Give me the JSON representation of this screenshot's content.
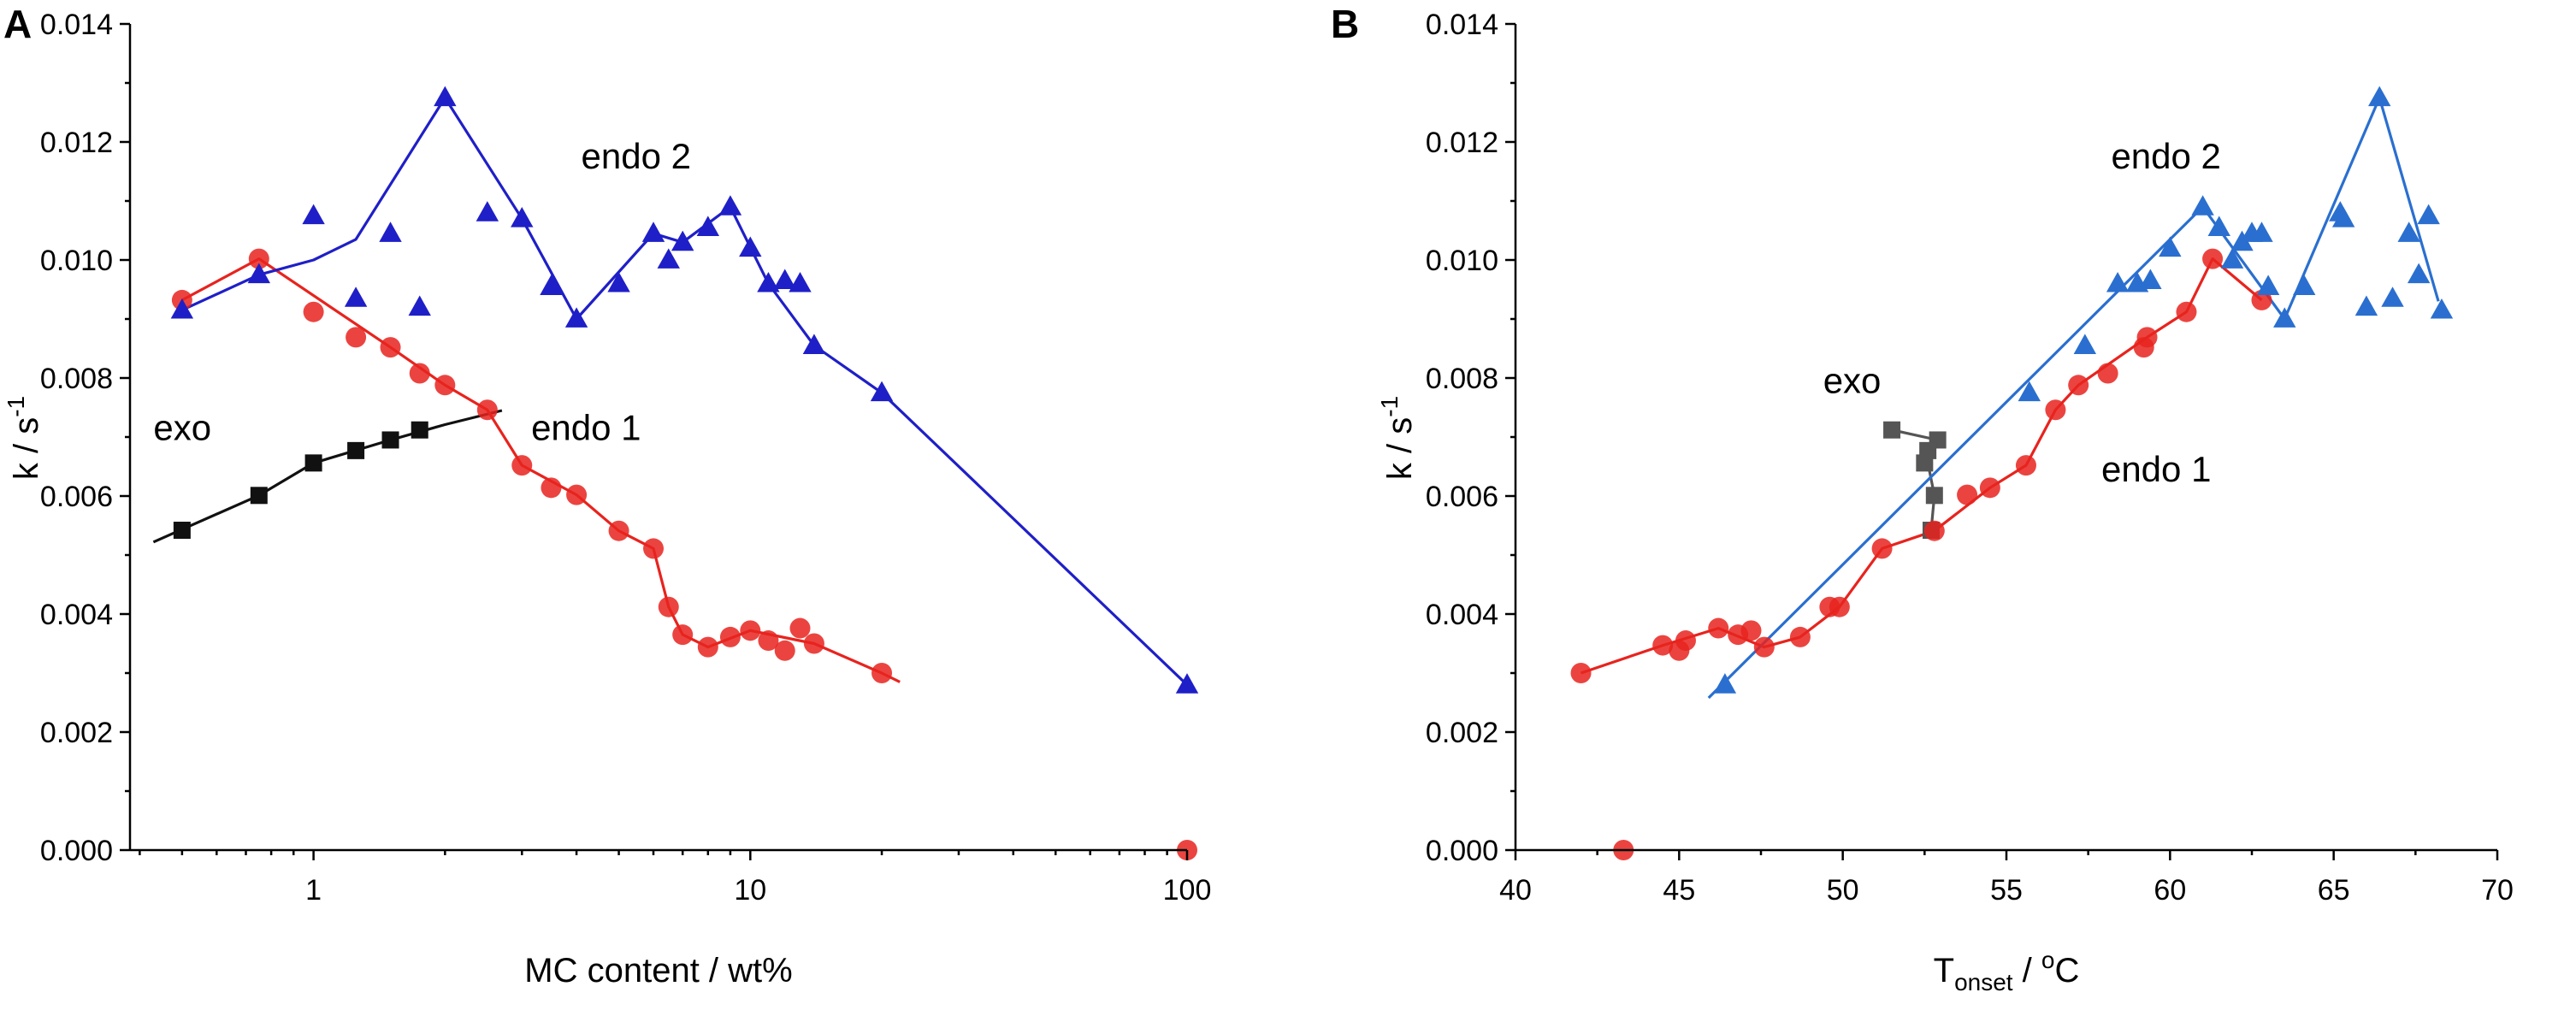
{
  "colors": {
    "exo": "#111111",
    "endo1": "#e8231e",
    "endo2": "#1f1fc8"
  },
  "chart_data": [
    {
      "panel": "A",
      "type": "scatter",
      "title": "",
      "xlabel": "MC content / wt%",
      "ylabel_main": "k / s",
      "ylabel_sup": "-1",
      "xscale": "log",
      "xlim": [
        0.38,
        100
      ],
      "ylim": [
        0,
        0.014
      ],
      "xticks": [
        1,
        10,
        100
      ],
      "xtick_labels": [
        "1",
        "10",
        "100"
      ],
      "yticks": [
        0,
        0.002,
        0.004,
        0.006,
        0.008,
        0.01,
        0.012,
        0.014
      ],
      "ytick_labels": [
        "0.000",
        "0.002",
        "0.004",
        "0.006",
        "0.008",
        "0.010",
        "0.012",
        "0.014"
      ],
      "series": [
        {
          "name": "exo",
          "marker": "square",
          "color": "#111111",
          "points": [
            [
              0.5,
              0.00542
            ],
            [
              0.75,
              0.00601
            ],
            [
              1.0,
              0.00656
            ],
            [
              1.25,
              0.00677
            ],
            [
              1.5,
              0.00695
            ],
            [
              1.75,
              0.00712
            ]
          ],
          "line": [
            [
              0.43,
              0.00522
            ],
            [
              0.75,
              0.00601
            ],
            [
              1.0,
              0.00656
            ],
            [
              1.5,
              0.00695
            ],
            [
              2.0,
              0.00721
            ],
            [
              2.7,
              0.00745
            ]
          ]
        },
        {
          "name": "endo 1",
          "marker": "circle",
          "color": "#e8231e",
          "points": [
            [
              0.5,
              0.00932
            ],
            [
              0.75,
              0.01002
            ],
            [
              1.0,
              0.00912
            ],
            [
              1.25,
              0.00869
            ],
            [
              1.5,
              0.00852
            ],
            [
              1.75,
              0.00808
            ],
            [
              2.0,
              0.00788
            ],
            [
              2.5,
              0.00746
            ],
            [
              3.0,
              0.00652
            ],
            [
              3.5,
              0.00614
            ],
            [
              4.0,
              0.00602
            ],
            [
              5.0,
              0.00541
            ],
            [
              6.0,
              0.00511
            ],
            [
              6.5,
              0.00412
            ],
            [
              7.0,
              0.00365
            ],
            [
              8.0,
              0.00344
            ],
            [
              9.0,
              0.00361
            ],
            [
              10.0,
              0.00372
            ],
            [
              11.0,
              0.00355
            ],
            [
              12.0,
              0.00338
            ],
            [
              13.0,
              0.00376
            ],
            [
              14.0,
              0.0035
            ],
            [
              20.0,
              0.003
            ],
            [
              100.0,
              0.0
            ]
          ],
          "line": [
            [
              0.5,
              0.00932
            ],
            [
              0.75,
              0.01002
            ],
            [
              1.5,
              0.00852
            ],
            [
              2.0,
              0.00788
            ],
            [
              2.5,
              0.00746
            ],
            [
              3.0,
              0.00652
            ],
            [
              4.0,
              0.00602
            ],
            [
              5.0,
              0.00541
            ],
            [
              6.0,
              0.00511
            ],
            [
              6.5,
              0.00412
            ],
            [
              7.0,
              0.00365
            ],
            [
              8.0,
              0.00344
            ],
            [
              10.0,
              0.00372
            ],
            [
              14.0,
              0.0035
            ],
            [
              20.0,
              0.003
            ],
            [
              22.0,
              0.00285
            ]
          ]
        },
        {
          "name": "endo 2",
          "marker": "triangle",
          "color": "#1f1fc8",
          "points": [
            [
              0.5,
              0.00915
            ],
            [
              0.75,
              0.00975
            ],
            [
              1.0,
              0.01075
            ],
            [
              1.25,
              0.00935
            ],
            [
              1.5,
              0.01045
            ],
            [
              1.75,
              0.0092
            ],
            [
              2.0,
              0.01275
            ],
            [
              2.5,
              0.0108
            ],
            [
              3.0,
              0.0107
            ],
            [
              3.5,
              0.00955
            ],
            [
              4.0,
              0.009
            ],
            [
              5.0,
              0.0096
            ],
            [
              6.0,
              0.01045
            ],
            [
              6.5,
              0.01
            ],
            [
              7.0,
              0.0103
            ],
            [
              8.0,
              0.01055
            ],
            [
              9.0,
              0.0109
            ],
            [
              10.0,
              0.0102
            ],
            [
              11.0,
              0.0096
            ],
            [
              12.0,
              0.00965
            ],
            [
              13.0,
              0.0096
            ],
            [
              14.0,
              0.00855
            ],
            [
              20.0,
              0.00775
            ],
            [
              100.0,
              0.0028
            ]
          ],
          "line": [
            [
              0.5,
              0.00915
            ],
            [
              0.75,
              0.00975
            ],
            [
              1.0,
              0.01
            ],
            [
              1.25,
              0.01035
            ],
            [
              2.0,
              0.01275
            ],
            [
              3.0,
              0.0107
            ],
            [
              4.0,
              0.009
            ],
            [
              6.0,
              0.01045
            ],
            [
              7.0,
              0.0103
            ],
            [
              9.0,
              0.0109
            ],
            [
              11.0,
              0.0096
            ],
            [
              14.0,
              0.00855
            ],
            [
              20.0,
              0.00775
            ],
            [
              100.0,
              0.0028
            ]
          ]
        }
      ],
      "annotations": [
        {
          "text": "exo",
          "x": 0.43,
          "y": 0.00695
        },
        {
          "text": "endo 1",
          "x": 3.15,
          "y": 0.00695
        },
        {
          "text": "endo 2",
          "x": 4.1,
          "y": 0.01155
        }
      ]
    },
    {
      "panel": "B",
      "type": "scatter",
      "title": "",
      "xlabel_main": "T",
      "xlabel_sub": "onset",
      "xlabel_rest": " / ",
      "xlabel_sup": "o",
      "xlabel_unit": "C",
      "ylabel_main": "k / s",
      "ylabel_sup": "-1",
      "xscale": "linear",
      "xlim": [
        40,
        70
      ],
      "ylim": [
        0,
        0.014
      ],
      "xticks": [
        40,
        45,
        50,
        55,
        60,
        65,
        70
      ],
      "xtick_labels": [
        "40",
        "45",
        "50",
        "55",
        "60",
        "65",
        "70"
      ],
      "yticks": [
        0,
        0.002,
        0.004,
        0.006,
        0.008,
        0.01,
        0.012,
        0.014
      ],
      "ytick_labels": [
        "0.000",
        "0.002",
        "0.004",
        "0.006",
        "0.008",
        "0.010",
        "0.012",
        "0.014"
      ],
      "series": [
        {
          "name": "exo",
          "marker": "square",
          "color": "#555555",
          "points": [
            [
              51.5,
              0.00712
            ],
            [
              52.9,
              0.00695
            ],
            [
              52.6,
              0.00677
            ],
            [
              52.5,
              0.00656
            ],
            [
              52.8,
              0.00601
            ],
            [
              52.7,
              0.00542
            ]
          ],
          "line": [
            [
              51.5,
              0.00712
            ],
            [
              52.9,
              0.00695
            ],
            [
              52.6,
              0.00677
            ],
            [
              52.6,
              0.00656
            ],
            [
              52.8,
              0.00601
            ],
            [
              52.7,
              0.00542
            ]
          ]
        },
        {
          "name": "endo 1",
          "marker": "circle",
          "color": "#e8231e",
          "points": [
            [
              42.0,
              0.003
            ],
            [
              43.3,
              0.0
            ],
            [
              44.5,
              0.00347
            ],
            [
              45.0,
              0.00338
            ],
            [
              45.2,
              0.00355
            ],
            [
              46.2,
              0.00376
            ],
            [
              46.8,
              0.00365
            ],
            [
              47.2,
              0.00372
            ],
            [
              47.6,
              0.00344
            ],
            [
              48.7,
              0.00361
            ],
            [
              49.6,
              0.00412
            ],
            [
              49.9,
              0.00412
            ],
            [
              51.2,
              0.00511
            ],
            [
              52.8,
              0.00541
            ],
            [
              53.8,
              0.00602
            ],
            [
              54.5,
              0.00614
            ],
            [
              55.6,
              0.00652
            ],
            [
              56.5,
              0.00746
            ],
            [
              57.2,
              0.00788
            ],
            [
              58.1,
              0.00808
            ],
            [
              59.2,
              0.00852
            ],
            [
              59.3,
              0.00869
            ],
            [
              60.5,
              0.00912
            ],
            [
              61.3,
              0.01002
            ],
            [
              62.8,
              0.00932
            ]
          ],
          "line": [
            [
              42.0,
              0.003
            ],
            [
              44.5,
              0.00347
            ],
            [
              46.2,
              0.00376
            ],
            [
              47.6,
              0.00344
            ],
            [
              48.7,
              0.00361
            ],
            [
              49.9,
              0.00412
            ],
            [
              51.2,
              0.00511
            ],
            [
              52.8,
              0.00541
            ],
            [
              54.5,
              0.00614
            ],
            [
              55.6,
              0.00652
            ],
            [
              56.5,
              0.00746
            ],
            [
              57.2,
              0.00788
            ],
            [
              59.3,
              0.00869
            ],
            [
              60.5,
              0.00912
            ],
            [
              61.3,
              0.01002
            ],
            [
              62.8,
              0.00932
            ]
          ]
        },
        {
          "name": "endo 2",
          "marker": "triangle",
          "color": "#2a6fd0",
          "points": [
            [
              46.4,
              0.0028
            ],
            [
              55.7,
              0.00775
            ],
            [
              57.4,
              0.00855
            ],
            [
              58.4,
              0.0096
            ],
            [
              59.0,
              0.0096
            ],
            [
              59.4,
              0.00965
            ],
            [
              60.0,
              0.0102
            ],
            [
              61.0,
              0.0109
            ],
            [
              61.5,
              0.01055
            ],
            [
              61.9,
              0.01
            ],
            [
              62.2,
              0.0103
            ],
            [
              62.5,
              0.01045
            ],
            [
              62.8,
              0.01045
            ],
            [
              63.0,
              0.00955
            ],
            [
              63.5,
              0.009
            ],
            [
              64.1,
              0.00955
            ],
            [
              65.2,
              0.0108
            ],
            [
              65.3,
              0.0107
            ],
            [
              66.0,
              0.0092
            ],
            [
              66.4,
              0.01275
            ],
            [
              66.8,
              0.00935
            ],
            [
              67.3,
              0.01045
            ],
            [
              67.6,
              0.00975
            ],
            [
              67.9,
              0.01075
            ],
            [
              68.3,
              0.00915
            ]
          ],
          "line": [
            [
              45.9,
              0.00258
            ],
            [
              61.0,
              0.0109
            ],
            [
              63.5,
              0.009
            ],
            [
              66.4,
              0.01275
            ],
            [
              68.2,
              0.0093
            ]
          ]
        }
      ],
      "annotations": [
        {
          "text": "exo",
          "x": 49.4,
          "y": 0.00775
        },
        {
          "text": "endo 1",
          "x": 57.9,
          "y": 0.00625
        },
        {
          "text": "endo 2",
          "x": 58.2,
          "y": 0.01155
        }
      ]
    }
  ]
}
